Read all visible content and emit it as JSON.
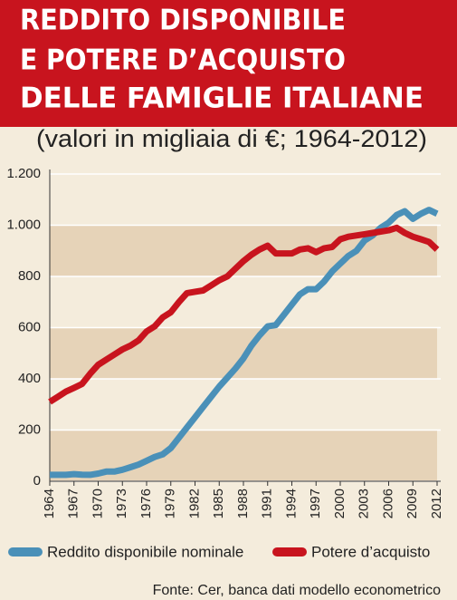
{
  "chart_data": {
    "type": "line",
    "title": [
      "REDDITO DISPONIBILE",
      "E POTERE D’ACQUISTO",
      "DELLE FAMIGLIE ITALIANE"
    ],
    "subtitle": "(valori in migliaia di €; 1964-2012)",
    "source": "Fonte: Cer, banca dati modello econometrico",
    "x": [
      1964,
      1965,
      1966,
      1967,
      1968,
      1969,
      1970,
      1971,
      1972,
      1973,
      1974,
      1975,
      1976,
      1977,
      1978,
      1979,
      1980,
      1981,
      1982,
      1983,
      1984,
      1985,
      1986,
      1987,
      1988,
      1989,
      1990,
      1991,
      1992,
      1993,
      1994,
      1995,
      1996,
      1997,
      1998,
      1999,
      2000,
      2001,
      2002,
      2003,
      2004,
      2005,
      2006,
      2007,
      2008,
      2009,
      2010,
      2011,
      2012
    ],
    "xlim": [
      1964,
      2012
    ],
    "xticks": [
      1964,
      1967,
      1970,
      1973,
      1976,
      1979,
      1982,
      1985,
      1988,
      1991,
      1994,
      1997,
      2000,
      2003,
      2006,
      2009,
      2012
    ],
    "ylim": [
      0,
      1200
    ],
    "yticks": [
      0,
      200,
      400,
      600,
      800,
      {
        "value": 1000,
        "label": "1.000"
      },
      {
        "value": 1200,
        "label": "1.200"
      }
    ],
    "grid": true,
    "legend": "bottom",
    "series": [
      {
        "name": "Reddito disponibile nominale",
        "color": "#4a90b8",
        "values": [
          25,
          25,
          25,
          28,
          26,
          25,
          30,
          38,
          38,
          45,
          55,
          65,
          80,
          95,
          105,
          130,
          170,
          210,
          250,
          290,
          330,
          370,
          405,
          440,
          480,
          530,
          570,
          605,
          610,
          650,
          690,
          730,
          750,
          750,
          780,
          820,
          850,
          880,
          900,
          940,
          960,
          990,
          1010,
          1040,
          1055,
          1025,
          1045,
          1060,
          1045
        ]
      },
      {
        "name": "Potere d’acquisto",
        "color": "#c8141e",
        "values": [
          310,
          330,
          350,
          365,
          380,
          420,
          455,
          475,
          495,
          515,
          530,
          550,
          585,
          605,
          640,
          660,
          700,
          735,
          740,
          745,
          765,
          785,
          800,
          830,
          860,
          885,
          905,
          920,
          890,
          890,
          890,
          905,
          910,
          895,
          910,
          915,
          945,
          955,
          960,
          965,
          970,
          975,
          980,
          990,
          970,
          955,
          945,
          935,
          905
        ]
      }
    ]
  }
}
